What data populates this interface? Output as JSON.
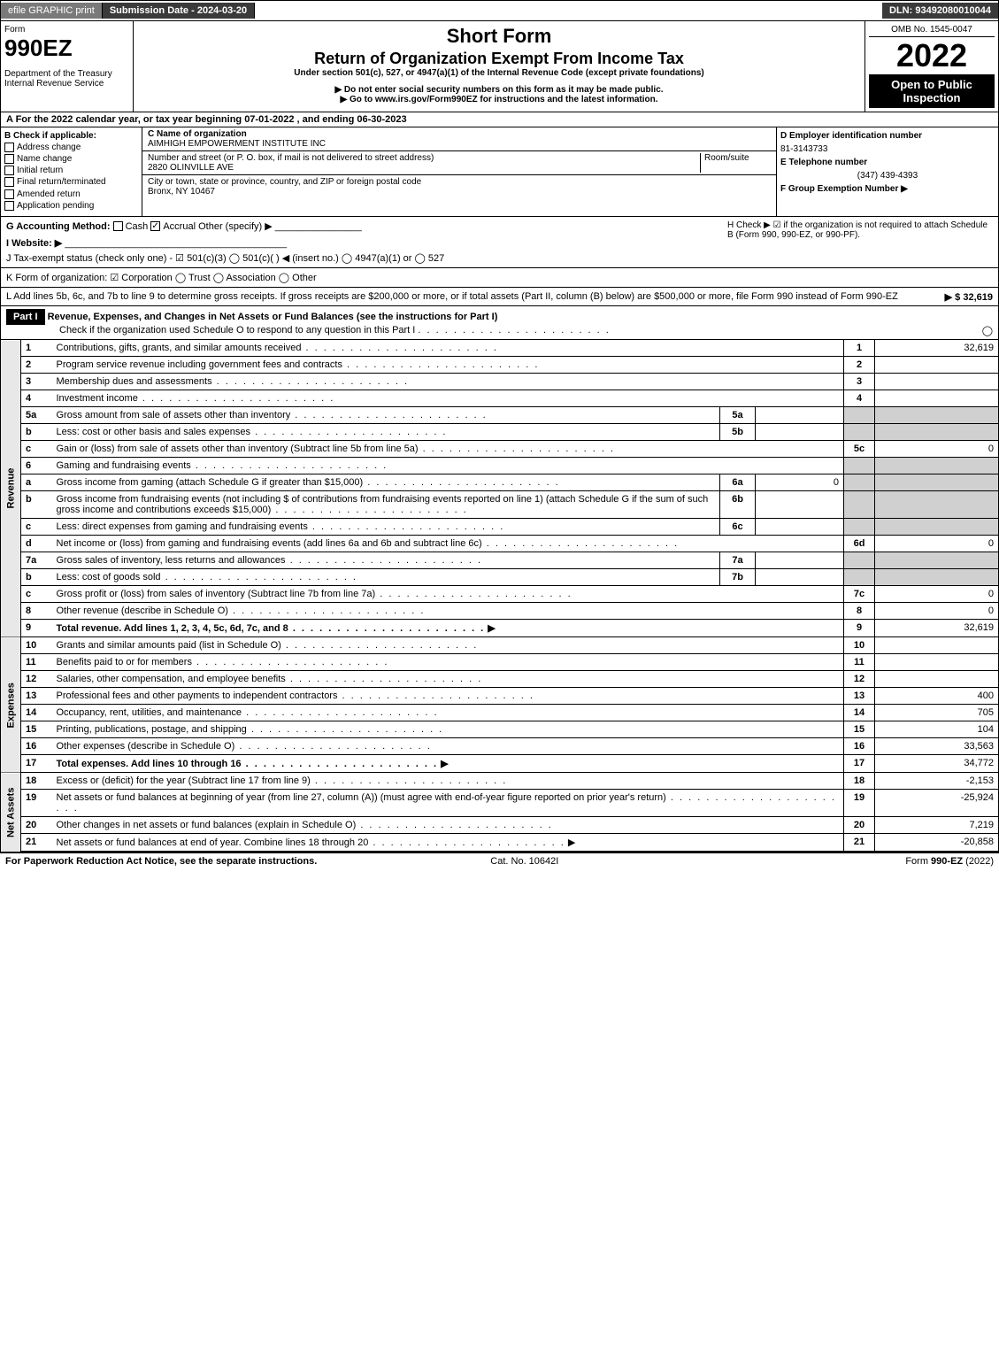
{
  "topbar": {
    "efile": "efile GRAPHIC print",
    "submission": "Submission Date - 2024-03-20",
    "dln": "DLN: 93492080010044"
  },
  "header": {
    "form_label": "Form",
    "form_number": "990EZ",
    "dept": "Department of the Treasury\nInternal Revenue Service",
    "title1": "Short Form",
    "title2": "Return of Organization Exempt From Income Tax",
    "subtitle": "Under section 501(c), 527, or 4947(a)(1) of the Internal Revenue Code (except private foundations)",
    "warn1": "▶ Do not enter social security numbers on this form as it may be made public.",
    "warn2": "▶ Go to www.irs.gov/Form990EZ for instructions and the latest information.",
    "omb": "OMB No. 1545-0047",
    "year": "2022",
    "open": "Open to Public Inspection"
  },
  "rowA": "A  For the 2022 calendar year, or tax year beginning 07-01-2022 , and ending 06-30-2023",
  "sectionB": {
    "label": "B  Check if applicable:",
    "opts": [
      "Address change",
      "Name change",
      "Initial return",
      "Final return/terminated",
      "Amended return",
      "Application pending"
    ]
  },
  "sectionC": {
    "name_label": "C Name of organization",
    "name": "AIMHIGH EMPOWERMENT INSTITUTE INC",
    "addr_label": "Number and street (or P. O. box, if mail is not delivered to street address)",
    "room_label": "Room/suite",
    "addr": "2820 OLINVILLE AVE",
    "city_label": "City or town, state or province, country, and ZIP or foreign postal code",
    "city": "Bronx, NY  10467"
  },
  "sectionD": {
    "ein_label": "D Employer identification number",
    "ein": "81-3143733",
    "phone_label": "E Telephone number",
    "phone": "(347) 439-4393",
    "group_label": "F Group Exemption Number  ▶"
  },
  "rowG": {
    "label": "G Accounting Method:",
    "cash": "Cash",
    "accrual": "Accrual",
    "other": "Other (specify) ▶"
  },
  "rowH": "H  Check ▶ ☑ if the organization is not required to attach Schedule B (Form 990, 990-EZ, or 990-PF).",
  "rowI": "I Website: ▶",
  "rowJ": "J Tax-exempt status (check only one) - ☑ 501(c)(3)  ◯ 501(c)(  ) ◀ (insert no.)  ◯ 4947(a)(1) or  ◯ 527",
  "rowK": "K Form of organization:  ☑ Corporation  ◯ Trust  ◯ Association  ◯ Other",
  "rowL": {
    "text": "L Add lines 5b, 6c, and 7b to line 9 to determine gross receipts. If gross receipts are $200,000 or more, or if total assets (Part II, column (B) below) are $500,000 or more, file Form 990 instead of Form 990-EZ",
    "val": "▶ $ 32,619"
  },
  "part1": {
    "label": "Part I",
    "title": "Revenue, Expenses, and Changes in Net Assets or Fund Balances (see the instructions for Part I)",
    "check": "Check if the organization used Schedule O to respond to any question in this Part I",
    "check_val": "◯"
  },
  "sections": {
    "revenue": "Revenue",
    "expenses": "Expenses",
    "netassets": "Net Assets"
  },
  "lines": [
    {
      "n": "1",
      "t": "Contributions, gifts, grants, and similar amounts received",
      "ln": "1",
      "v": "32,619"
    },
    {
      "n": "2",
      "t": "Program service revenue including government fees and contracts",
      "ln": "2",
      "v": ""
    },
    {
      "n": "3",
      "t": "Membership dues and assessments",
      "ln": "3",
      "v": ""
    },
    {
      "n": "4",
      "t": "Investment income",
      "ln": "4",
      "v": ""
    },
    {
      "n": "5a",
      "t": "Gross amount from sale of assets other than inventory",
      "sub": "5a",
      "sv": "",
      "gray": true
    },
    {
      "n": "b",
      "t": "Less: cost or other basis and sales expenses",
      "sub": "5b",
      "sv": "",
      "gray": true
    },
    {
      "n": "c",
      "t": "Gain or (loss) from sale of assets other than inventory (Subtract line 5b from line 5a)",
      "ln": "5c",
      "v": "0"
    },
    {
      "n": "6",
      "t": "Gaming and fundraising events",
      "gray": true
    },
    {
      "n": "a",
      "t": "Gross income from gaming (attach Schedule G if greater than $15,000)",
      "sub": "6a",
      "sv": "0",
      "gray": true
    },
    {
      "n": "b",
      "t": "Gross income from fundraising events (not including $                  of contributions from fundraising events reported on line 1) (attach Schedule G if the sum of such gross income and contributions exceeds $15,000)",
      "sub": "6b",
      "sv": "",
      "gray": true
    },
    {
      "n": "c",
      "t": "Less: direct expenses from gaming and fundraising events",
      "sub": "6c",
      "sv": "",
      "gray": true
    },
    {
      "n": "d",
      "t": "Net income or (loss) from gaming and fundraising events (add lines 6a and 6b and subtract line 6c)",
      "ln": "6d",
      "v": "0"
    },
    {
      "n": "7a",
      "t": "Gross sales of inventory, less returns and allowances",
      "sub": "7a",
      "sv": "",
      "gray": true
    },
    {
      "n": "b",
      "t": "Less: cost of goods sold",
      "sub": "7b",
      "sv": "",
      "gray": true
    },
    {
      "n": "c",
      "t": "Gross profit or (loss) from sales of inventory (Subtract line 7b from line 7a)",
      "ln": "7c",
      "v": "0"
    },
    {
      "n": "8",
      "t": "Other revenue (describe in Schedule O)",
      "ln": "8",
      "v": "0"
    },
    {
      "n": "9",
      "t": "Total revenue. Add lines 1, 2, 3, 4, 5c, 6d, 7c, and 8",
      "ln": "9",
      "v": "32,619",
      "bold": true,
      "arrow": true
    }
  ],
  "exp_lines": [
    {
      "n": "10",
      "t": "Grants and similar amounts paid (list in Schedule O)",
      "ln": "10",
      "v": ""
    },
    {
      "n": "11",
      "t": "Benefits paid to or for members",
      "ln": "11",
      "v": ""
    },
    {
      "n": "12",
      "t": "Salaries, other compensation, and employee benefits",
      "ln": "12",
      "v": ""
    },
    {
      "n": "13",
      "t": "Professional fees and other payments to independent contractors",
      "ln": "13",
      "v": "400"
    },
    {
      "n": "14",
      "t": "Occupancy, rent, utilities, and maintenance",
      "ln": "14",
      "v": "705"
    },
    {
      "n": "15",
      "t": "Printing, publications, postage, and shipping",
      "ln": "15",
      "v": "104"
    },
    {
      "n": "16",
      "t": "Other expenses (describe in Schedule O)",
      "ln": "16",
      "v": "33,563"
    },
    {
      "n": "17",
      "t": "Total expenses. Add lines 10 through 16",
      "ln": "17",
      "v": "34,772",
      "bold": true,
      "arrow": true
    }
  ],
  "net_lines": [
    {
      "n": "18",
      "t": "Excess or (deficit) for the year (Subtract line 17 from line 9)",
      "ln": "18",
      "v": "-2,153"
    },
    {
      "n": "19",
      "t": "Net assets or fund balances at beginning of year (from line 27, column (A)) (must agree with end-of-year figure reported on prior year's return)",
      "ln": "19",
      "v": "-25,924"
    },
    {
      "n": "20",
      "t": "Other changes in net assets or fund balances (explain in Schedule O)",
      "ln": "20",
      "v": "7,219"
    },
    {
      "n": "21",
      "t": "Net assets or fund balances at end of year. Combine lines 18 through 20",
      "ln": "21",
      "v": "-20,858",
      "arrow": true
    }
  ],
  "footer": {
    "left": "For Paperwork Reduction Act Notice, see the separate instructions.",
    "mid": "Cat. No. 10642I",
    "right": "Form 990-EZ (2022)"
  }
}
